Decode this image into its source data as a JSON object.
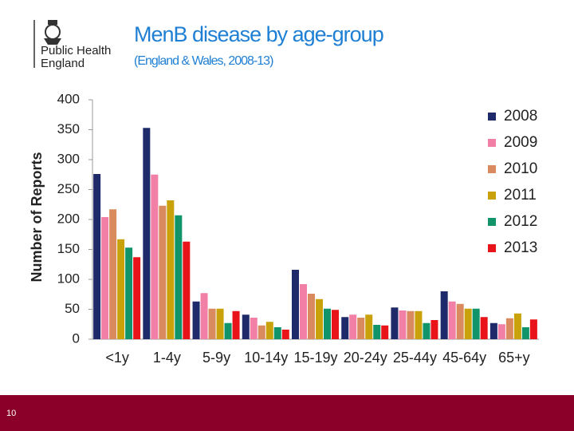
{
  "logo": {
    "lines": [
      "Public Health",
      "England"
    ]
  },
  "slide_number": 10,
  "chart_data": {
    "type": "bar",
    "title": "MenB disease by age-group",
    "subtitle": "(England & Wales, 2008-13)",
    "y_label": "Number of Reports",
    "categories": [
      "<1y",
      "1-4y",
      "5-9y",
      "10-14y",
      "15-19y",
      "20-24y",
      "25-44y",
      "45-64y",
      "65+y"
    ],
    "series": [
      {
        "name": "2008",
        "color": "#1f2a6b",
        "values": [
          276,
          353,
          63,
          41,
          116,
          37,
          53,
          80,
          27
        ]
      },
      {
        "name": "2009",
        "color": "#f27fa6",
        "values": [
          204,
          275,
          77,
          36,
          92,
          41,
          48,
          63,
          25
        ]
      },
      {
        "name": "2010",
        "color": "#d98b5f",
        "values": [
          217,
          223,
          51,
          23,
          76,
          36,
          47,
          59,
          35
        ]
      },
      {
        "name": "2011",
        "color": "#c9a10a",
        "values": [
          167,
          232,
          51,
          29,
          67,
          41,
          47,
          51,
          43
        ]
      },
      {
        "name": "2012",
        "color": "#119469",
        "values": [
          153,
          207,
          27,
          20,
          51,
          24,
          27,
          51,
          20
        ]
      },
      {
        "name": "2013",
        "color": "#e8141a",
        "values": [
          137,
          163,
          47,
          16,
          49,
          23,
          32,
          37,
          33
        ]
      }
    ],
    "ylim": [
      0,
      400
    ],
    "yticks": [
      0,
      50,
      100,
      150,
      200,
      250,
      300,
      350,
      400
    ],
    "grid": false
  }
}
